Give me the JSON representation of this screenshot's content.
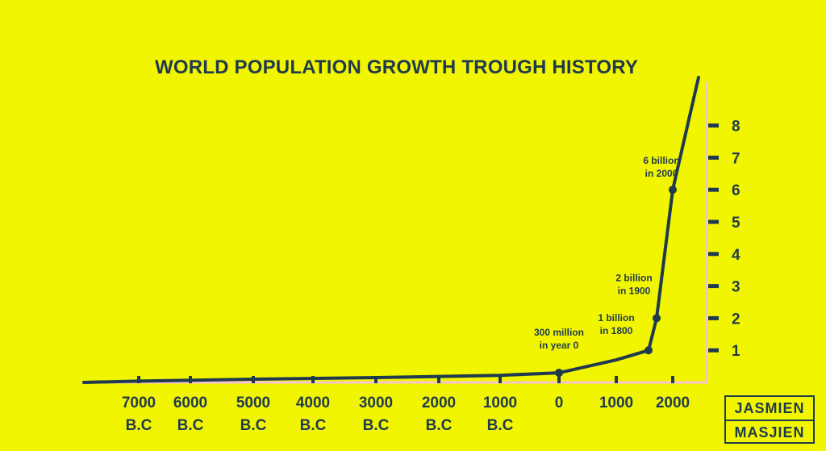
{
  "chart_data": {
    "type": "line",
    "title": "WORLD POPULATION GROWTH TROUGH HISTORY",
    "xlabel": "",
    "ylabel": "",
    "x_unit": "year",
    "y_unit": "billion",
    "ylim": [
      0,
      8
    ],
    "y_ticks": [
      1,
      2,
      3,
      4,
      5,
      6,
      7,
      8
    ],
    "x_ticks": [
      {
        "value": -7000,
        "label": [
          "7000",
          "B.C"
        ]
      },
      {
        "value": -6000,
        "label": [
          "6000",
          "B.C"
        ]
      },
      {
        "value": -5000,
        "label": [
          "5000",
          "B.C"
        ]
      },
      {
        "value": -4000,
        "label": [
          "4000",
          "B.C"
        ]
      },
      {
        "value": -3000,
        "label": [
          "3000",
          "B.C"
        ]
      },
      {
        "value": -2000,
        "label": [
          "2000",
          "B.C"
        ]
      },
      {
        "value": -1000,
        "label": [
          "1000",
          "B.C"
        ]
      },
      {
        "value": 0,
        "label": [
          "0"
        ]
      },
      {
        "value": 1000,
        "label": [
          "1000"
        ]
      },
      {
        "value": 2000,
        "label": [
          "2000"
        ]
      }
    ],
    "series": [
      {
        "x": [
          -8000,
          -7000,
          -5000,
          -3000,
          -1000,
          0,
          500,
          1000,
          1800,
          1900,
          2000,
          2050
        ],
        "y": [
          0.0,
          0.04,
          0.1,
          0.15,
          0.22,
          0.3,
          0.5,
          0.7,
          1.0,
          2.0,
          6.0,
          9.5
        ]
      }
    ],
    "annotations": [
      {
        "x": 0,
        "y": 0.3,
        "text": [
          "300 million",
          "in year 0"
        ]
      },
      {
        "x": 1800,
        "y": 1.0,
        "text": [
          "1 billion",
          "in 1800"
        ]
      },
      {
        "x": 1900,
        "y": 2.0,
        "text": [
          "2 billion",
          "in 1900"
        ]
      },
      {
        "x": 2000,
        "y": 6.0,
        "text": [
          "6 billion",
          "in 2000"
        ]
      }
    ],
    "colors": {
      "background": "#f2f500",
      "line": "#1f3a4d",
      "axis": "#f5c2cf",
      "text": "#1f3a4d"
    }
  },
  "logo": {
    "line1": "JASMIEN",
    "line2": "MASJIEN"
  }
}
